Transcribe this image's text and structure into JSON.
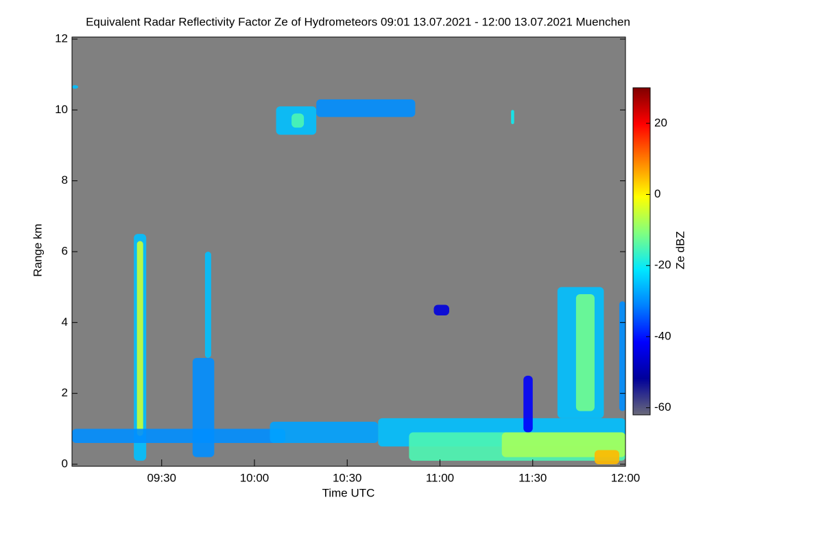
{
  "chart_data": {
    "type": "heatmap",
    "title": "Equivalent Radar Reflectivity Factor Ze of Hydrometeors   09:01 13.07.2021 - 12:00 13.07.2021 Muenchen",
    "x_label": "Time UTC",
    "y_label": "Range km",
    "colorbar_label": "Ze dBZ",
    "xlim": [
      "09:01",
      "12:00"
    ],
    "xticks": [
      "09:30",
      "10:00",
      "10:30",
      "11:00",
      "11:30",
      "12:00"
    ],
    "ylim": [
      0,
      12
    ],
    "yticks": [
      0,
      2,
      4,
      6,
      8,
      10,
      12
    ],
    "clim": [
      -62,
      30
    ],
    "cticks": [
      -60,
      -40,
      -20,
      0,
      20
    ],
    "background": "#808080",
    "colormap": [
      "#6a6a7a",
      "#00009a",
      "#0000ff",
      "#0080ff",
      "#00e8ff",
      "#80ff80",
      "#ffff00",
      "#ff8000",
      "#ff0000",
      "#800000"
    ],
    "cells": {
      "time_start": [
        "09:21",
        "09:22",
        "09:40",
        "09:44",
        "09:01",
        "10:05",
        "10:40",
        "10:50",
        "11:20",
        "11:50",
        "10:07",
        "10:20",
        "10:12",
        "11:38",
        "11:44",
        "11:27",
        "11:58",
        "10:58",
        "11:23",
        "09:01"
      ],
      "time_end": [
        "09:25",
        "09:24",
        "09:47",
        "09:46",
        "10:10",
        "10:40",
        "12:00",
        "12:00",
        "12:00",
        "11:58",
        "10:20",
        "10:52",
        "10:16",
        "11:53",
        "11:50",
        "11:30",
        "12:00",
        "11:03",
        "11:24",
        "09:03"
      ],
      "range_bottom": [
        0.1,
        0.8,
        0.2,
        3.0,
        0.6,
        0.6,
        0.5,
        0.1,
        0.2,
        0.0,
        9.3,
        9.8,
        9.5,
        1.3,
        1.5,
        0.9,
        1.5,
        4.2,
        9.6,
        10.6
      ],
      "range_top": [
        6.5,
        6.3,
        3.0,
        6.0,
        1.0,
        1.2,
        1.3,
        0.9,
        0.9,
        0.4,
        10.1,
        10.3,
        9.9,
        5.0,
        4.8,
        2.5,
        4.6,
        4.5,
        10.0,
        10.7
      ],
      "values": [
        -25,
        -5,
        -30,
        -25,
        -30,
        -28,
        -25,
        -15,
        -8,
        5,
        -25,
        -30,
        -15,
        -25,
        -12,
        -42,
        -30,
        -45,
        -20,
        -25
      ]
    }
  }
}
